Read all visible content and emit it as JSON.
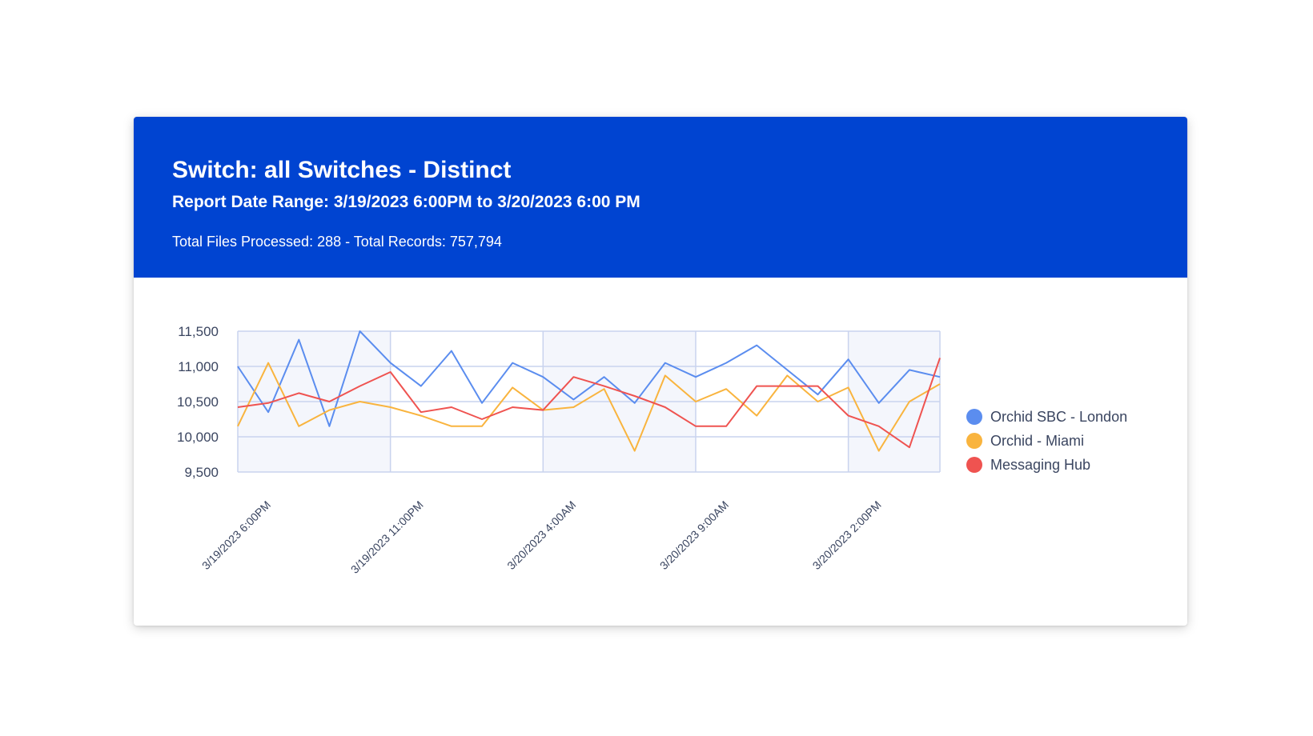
{
  "report": {
    "title": "Switch: all Switches - Distinct",
    "date_range": "Report Date Range: 3/19/2023 6:00PM to 3/20/2023 6:00 PM",
    "totals": "Total Files Processed: 288 - Total Records: 757,794"
  },
  "colors": {
    "header_bg": "#0044d1",
    "plot_band": "#f4f6fc",
    "grid": "#c9d3ee",
    "axis_text": "#3a4560"
  },
  "chart_data": {
    "type": "line",
    "title": "",
    "xlabel": "",
    "ylabel": "",
    "ylim": [
      9500,
      11500
    ],
    "yticks": [
      9500,
      10000,
      10500,
      11000,
      11500
    ],
    "grid": true,
    "legend_position": "right",
    "x_labeled_ticks": [
      {
        "index": 0,
        "label": "3/19/2023 6:00PM"
      },
      {
        "index": 10,
        "label": "3/19/2023 11:00PM"
      },
      {
        "index": 20,
        "label": "3/20/2023 4:00AM"
      },
      {
        "index": 30,
        "label": "3/20/2023 9:00AM"
      },
      {
        "index": 40,
        "label": "3/20/2023 2:00PM"
      }
    ],
    "x_count": 49,
    "series": [
      {
        "name": "Orchid SBC - London",
        "color": "#5b8def",
        "points": [
          [
            0,
            11000
          ],
          [
            4,
            10350
          ],
          [
            8,
            11380
          ],
          [
            12,
            10150
          ],
          [
            16,
            11500
          ],
          [
            20,
            11050
          ],
          [
            24,
            10720
          ],
          [
            28,
            11220
          ],
          [
            32,
            10480
          ],
          [
            36,
            11050
          ],
          [
            40,
            10850
          ],
          [
            44,
            10530
          ],
          [
            48,
            10850
          ],
          [
            52,
            10480
          ],
          [
            56,
            11050
          ],
          [
            60,
            10850
          ],
          [
            64,
            11050
          ],
          [
            68,
            11300
          ],
          [
            72,
            10950
          ],
          [
            76,
            10600
          ],
          [
            80,
            11100
          ],
          [
            84,
            10480
          ],
          [
            88,
            10950
          ],
          [
            92,
            10850
          ]
        ]
      },
      {
        "name": "Orchid - Miami",
        "color": "#f9b43e",
        "points": [
          [
            0,
            10150
          ],
          [
            4,
            11050
          ],
          [
            8,
            10150
          ],
          [
            12,
            10380
          ],
          [
            16,
            10500
          ],
          [
            20,
            10420
          ],
          [
            24,
            10300
          ],
          [
            28,
            10150
          ],
          [
            32,
            10150
          ],
          [
            36,
            10700
          ],
          [
            40,
            10380
          ],
          [
            44,
            10420
          ],
          [
            48,
            10680
          ],
          [
            52,
            9800
          ],
          [
            56,
            10870
          ],
          [
            60,
            10500
          ],
          [
            64,
            10680
          ],
          [
            68,
            10300
          ],
          [
            72,
            10870
          ],
          [
            76,
            10500
          ],
          [
            80,
            10700
          ],
          [
            84,
            9800
          ],
          [
            88,
            10500
          ],
          [
            92,
            10750
          ]
        ]
      },
      {
        "name": "Messaging Hub",
        "color": "#ef5350",
        "points": [
          [
            0,
            10420
          ],
          [
            4,
            10480
          ],
          [
            8,
            10620
          ],
          [
            12,
            10500
          ],
          [
            16,
            10720
          ],
          [
            20,
            10920
          ],
          [
            24,
            10350
          ],
          [
            28,
            10420
          ],
          [
            32,
            10250
          ],
          [
            36,
            10420
          ],
          [
            40,
            10380
          ],
          [
            44,
            10850
          ],
          [
            48,
            10720
          ],
          [
            52,
            10580
          ],
          [
            56,
            10420
          ],
          [
            60,
            10150
          ],
          [
            64,
            10150
          ],
          [
            68,
            10720
          ],
          [
            72,
            10720
          ],
          [
            76,
            10720
          ],
          [
            80,
            10300
          ],
          [
            84,
            10150
          ],
          [
            88,
            9850
          ],
          [
            92,
            11120
          ]
        ]
      }
    ]
  }
}
